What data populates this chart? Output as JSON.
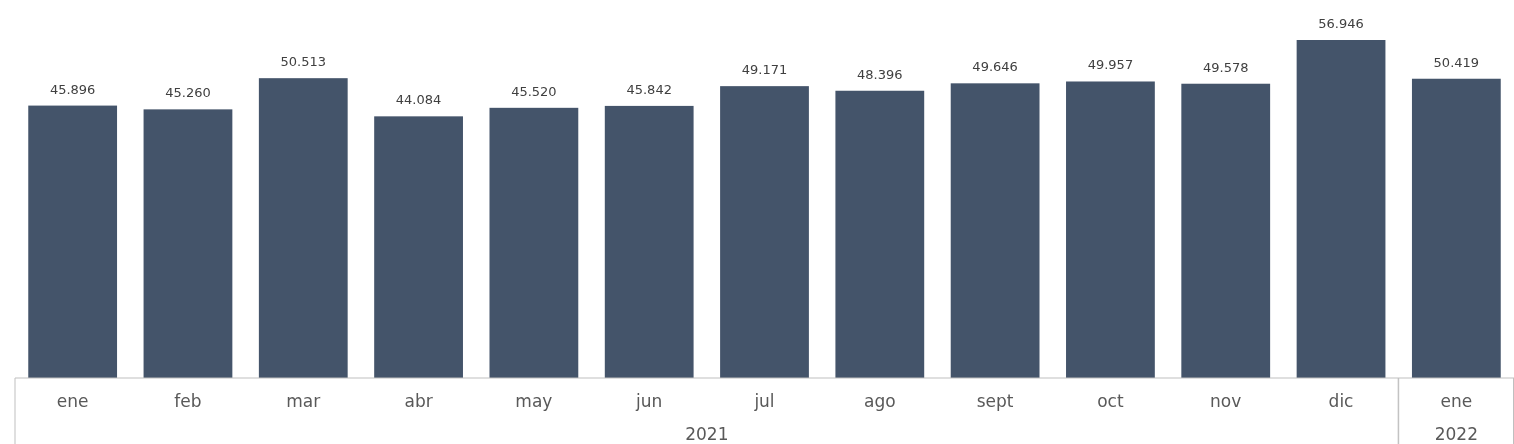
{
  "chart_data": {
    "type": "bar",
    "categories": [
      "ene",
      "feb",
      "mar",
      "abr",
      "may",
      "jun",
      "jul",
      "ago",
      "sept",
      "oct",
      "nov",
      "dic",
      "ene"
    ],
    "values": [
      45896,
      45260,
      50513,
      44084,
      45520,
      45842,
      49171,
      48396,
      49646,
      49957,
      49578,
      56946,
      50419
    ],
    "value_labels": [
      "45.896",
      "45.260",
      "50.513",
      "44.084",
      "45.520",
      "45.842",
      "49.171",
      "48.396",
      "49.646",
      "49.957",
      "49.578",
      "56.946",
      "50.419"
    ],
    "color": "#44546a",
    "annotations": [
      "2021",
      "2022"
    ]
  }
}
